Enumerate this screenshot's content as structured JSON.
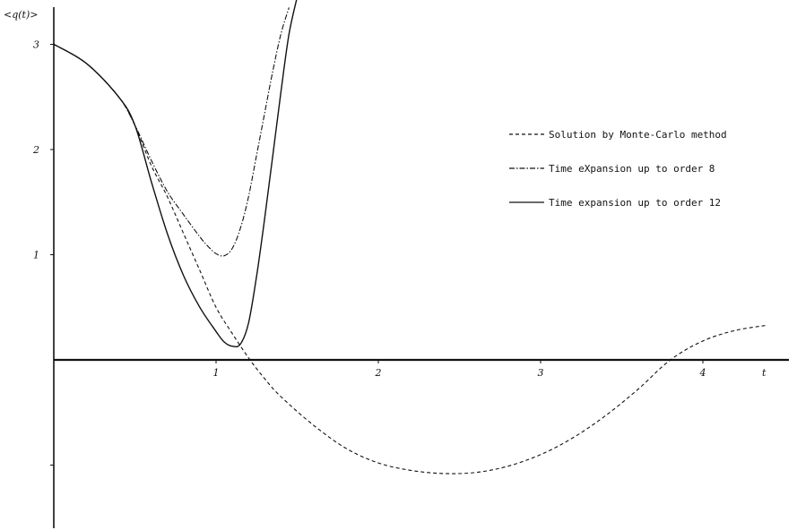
{
  "chart_data": {
    "type": "line",
    "title": "",
    "ylabel": "<q(t)>",
    "xlabel": "t",
    "xlim": [
      0,
      4.5
    ],
    "ylim": [
      -1.6,
      3.3
    ],
    "xticks": [
      {
        "value": 1,
        "label": "1"
      },
      {
        "value": 2,
        "label": "2"
      },
      {
        "value": 3,
        "label": "3"
      },
      {
        "value": 4,
        "label": "4"
      }
    ],
    "yticks": [
      {
        "value": 3,
        "label": "3"
      },
      {
        "value": 2,
        "label": "2"
      },
      {
        "value": 1,
        "label": "1"
      }
    ],
    "minor_yticks": [
      -1
    ],
    "grid": false,
    "legend_position": "right",
    "series": [
      {
        "name": "Solution by Monte-Carlo method",
        "style": "dashed",
        "x": [
          0.0,
          0.2,
          0.4,
          0.5,
          0.6,
          0.7,
          0.8,
          0.9,
          1.0,
          1.1,
          1.2,
          1.3,
          1.4,
          1.6,
          1.8,
          2.0,
          2.2,
          2.4,
          2.6,
          2.8,
          3.0,
          3.2,
          3.4,
          3.6,
          3.8,
          4.0,
          4.2,
          4.4
        ],
        "y": [
          3.0,
          2.82,
          2.5,
          2.23,
          1.85,
          1.55,
          1.2,
          0.85,
          0.5,
          0.25,
          0.02,
          -0.18,
          -0.35,
          -0.62,
          -0.84,
          -0.98,
          -1.05,
          -1.08,
          -1.07,
          -1.01,
          -0.9,
          -0.74,
          -0.53,
          -0.28,
          0.0,
          0.18,
          0.28,
          0.33
        ]
      },
      {
        "name": "Time expansion up to order 8",
        "style": "dash-dot",
        "x": [
          0.0,
          0.2,
          0.4,
          0.5,
          0.6,
          0.7,
          0.8,
          0.9,
          0.95,
          1.0,
          1.05,
          1.1,
          1.15,
          1.2,
          1.25,
          1.3,
          1.35,
          1.4,
          1.45
        ],
        "y": [
          3.0,
          2.82,
          2.5,
          2.23,
          1.9,
          1.6,
          1.38,
          1.17,
          1.08,
          1.01,
          0.99,
          1.06,
          1.25,
          1.55,
          1.95,
          2.35,
          2.75,
          3.1,
          3.35
        ]
      },
      {
        "name": "Time expansion up to order 12",
        "style": "solid",
        "x": [
          0.0,
          0.2,
          0.4,
          0.5,
          0.6,
          0.7,
          0.8,
          0.9,
          1.0,
          1.05,
          1.1,
          1.15,
          1.2,
          1.25,
          1.3,
          1.35,
          1.4,
          1.45,
          1.5
        ],
        "y": [
          3.0,
          2.82,
          2.5,
          2.23,
          1.7,
          1.2,
          0.8,
          0.5,
          0.27,
          0.17,
          0.13,
          0.15,
          0.35,
          0.8,
          1.35,
          1.95,
          2.55,
          3.1,
          3.45
        ]
      }
    ],
    "legend": [
      {
        "label": "Solution by Monte-Carlo method",
        "style": "dashed"
      },
      {
        "label": "Time eXpansion up to order 8",
        "style": "dash-dot"
      },
      {
        "label": "Time expansion up to order 12",
        "style": "solid"
      }
    ]
  }
}
